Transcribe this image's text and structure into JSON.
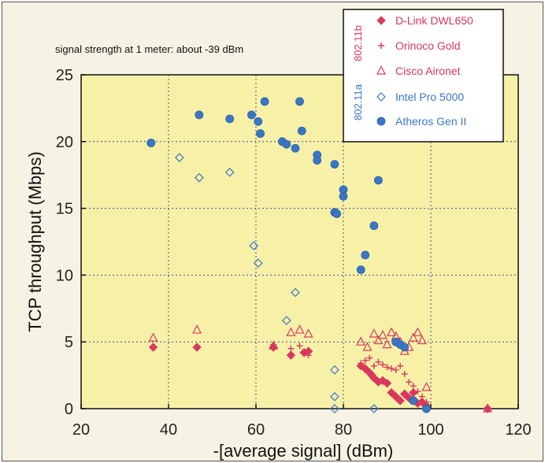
{
  "chart_data": {
    "type": "scatter",
    "annotation": "signal strength at 1 meter:  about -39 dBm",
    "xlabel": "-[average signal] (dBm)",
    "ylabel": "TCP throughput (Mbps)",
    "xlim": [
      20,
      120
    ],
    "ylim": [
      0,
      25
    ],
    "xticks": [
      "20",
      "40",
      "60",
      "80",
      "100",
      "120"
    ],
    "yticks": [
      "0",
      "5",
      "10",
      "15",
      "20",
      "25"
    ],
    "grid": true,
    "legend_position": "top-right",
    "legend_groups": [
      {
        "label": "802.11b",
        "color": "#d8385e",
        "series": [
          0,
          1,
          2
        ]
      },
      {
        "label": "802.11a",
        "color": "#3a76c4",
        "series": [
          3,
          4
        ]
      }
    ],
    "series": [
      {
        "name": "D-Link DWL650",
        "marker": "diamond-filled",
        "color": "#d8385e",
        "points": [
          [
            36.5,
            4.6
          ],
          [
            46.5,
            4.6
          ],
          [
            64,
            4.6
          ],
          [
            68,
            4.0
          ],
          [
            71,
            4.2
          ],
          [
            72,
            4.3
          ],
          [
            84,
            3.2
          ],
          [
            85,
            3.0
          ],
          [
            86,
            2.7
          ],
          [
            86.5,
            2.5
          ],
          [
            87,
            2.3
          ],
          [
            88,
            2.0
          ],
          [
            89,
            2.1
          ],
          [
            90,
            1.9
          ],
          [
            91,
            1.2
          ],
          [
            92,
            0.9
          ],
          [
            93,
            0.6
          ],
          [
            94,
            1.1
          ],
          [
            95,
            0.8
          ],
          [
            96,
            1.2
          ],
          [
            97,
            0.4
          ],
          [
            98,
            0.5
          ],
          [
            99,
            0.2
          ],
          [
            113,
            0.0
          ]
        ]
      },
      {
        "name": "Orinoco Gold",
        "marker": "plus",
        "color": "#d8385e",
        "points": [
          [
            64,
            4.8
          ],
          [
            68,
            4.5
          ],
          [
            70,
            4.7
          ],
          [
            72,
            4.0
          ],
          [
            84,
            3.4
          ],
          [
            85,
            3.6
          ],
          [
            86,
            3.8
          ],
          [
            87,
            3.2
          ],
          [
            88,
            3.5
          ],
          [
            89,
            3.3
          ],
          [
            90,
            3.1
          ],
          [
            91,
            3.0
          ],
          [
            92,
            2.9
          ],
          [
            93,
            3.2
          ],
          [
            94,
            2.6
          ],
          [
            95,
            2.0
          ],
          [
            96,
            1.7
          ],
          [
            97,
            1.3
          ],
          [
            98,
            0.9
          ],
          [
            99,
            0.5
          ]
        ]
      },
      {
        "name": "Cisco Aironet",
        "marker": "triangle-open",
        "color": "#d8385e",
        "points": [
          [
            36.5,
            5.3
          ],
          [
            46.5,
            5.9
          ],
          [
            64,
            4.7
          ],
          [
            68,
            5.7
          ],
          [
            70,
            5.9
          ],
          [
            72,
            5.6
          ],
          [
            84,
            5.0
          ],
          [
            85.5,
            4.6
          ],
          [
            87,
            5.6
          ],
          [
            88,
            5.1
          ],
          [
            89,
            5.5
          ],
          [
            90,
            4.8
          ],
          [
            91,
            5.7
          ],
          [
            92,
            5.4
          ],
          [
            93,
            5.0
          ],
          [
            94,
            4.3
          ],
          [
            95,
            4.6
          ],
          [
            96,
            5.3
          ],
          [
            97,
            5.7
          ],
          [
            98,
            5.1
          ],
          [
            99,
            1.6
          ],
          [
            113,
            0.0
          ]
        ]
      },
      {
        "name": "Intel Pro 5000",
        "marker": "diamond-open",
        "color": "#3a76c4",
        "points": [
          [
            42.5,
            18.8
          ],
          [
            47,
            17.3
          ],
          [
            54,
            17.7
          ],
          [
            59.5,
            12.2
          ],
          [
            60.5,
            10.9
          ],
          [
            67,
            6.6
          ],
          [
            69,
            8.7
          ],
          [
            78,
            2.9
          ],
          [
            78,
            0.9
          ],
          [
            78,
            0.0
          ],
          [
            87,
            0.0
          ],
          [
            99,
            0.0
          ]
        ]
      },
      {
        "name": "Atheros Gen II",
        "marker": "circle-filled",
        "color": "#3a76c4",
        "points": [
          [
            36,
            19.9
          ],
          [
            47,
            22.0
          ],
          [
            54,
            21.7
          ],
          [
            59,
            22.0
          ],
          [
            60.5,
            21.5
          ],
          [
            61,
            20.6
          ],
          [
            62,
            23.0
          ],
          [
            66,
            20.0
          ],
          [
            67,
            19.8
          ],
          [
            69,
            19.5
          ],
          [
            70,
            23.0
          ],
          [
            70.5,
            20.8
          ],
          [
            74,
            19.0
          ],
          [
            74,
            18.6
          ],
          [
            78,
            18.3
          ],
          [
            78,
            14.7
          ],
          [
            78.5,
            14.6
          ],
          [
            80,
            16.4
          ],
          [
            80,
            15.9
          ],
          [
            84,
            10.4
          ],
          [
            85,
            11.5
          ],
          [
            87,
            13.7
          ],
          [
            88,
            17.1
          ],
          [
            92,
            5.0
          ],
          [
            93,
            4.8
          ],
          [
            94,
            4.6
          ],
          [
            96,
            0.6
          ],
          [
            99,
            0.0
          ]
        ]
      }
    ]
  }
}
